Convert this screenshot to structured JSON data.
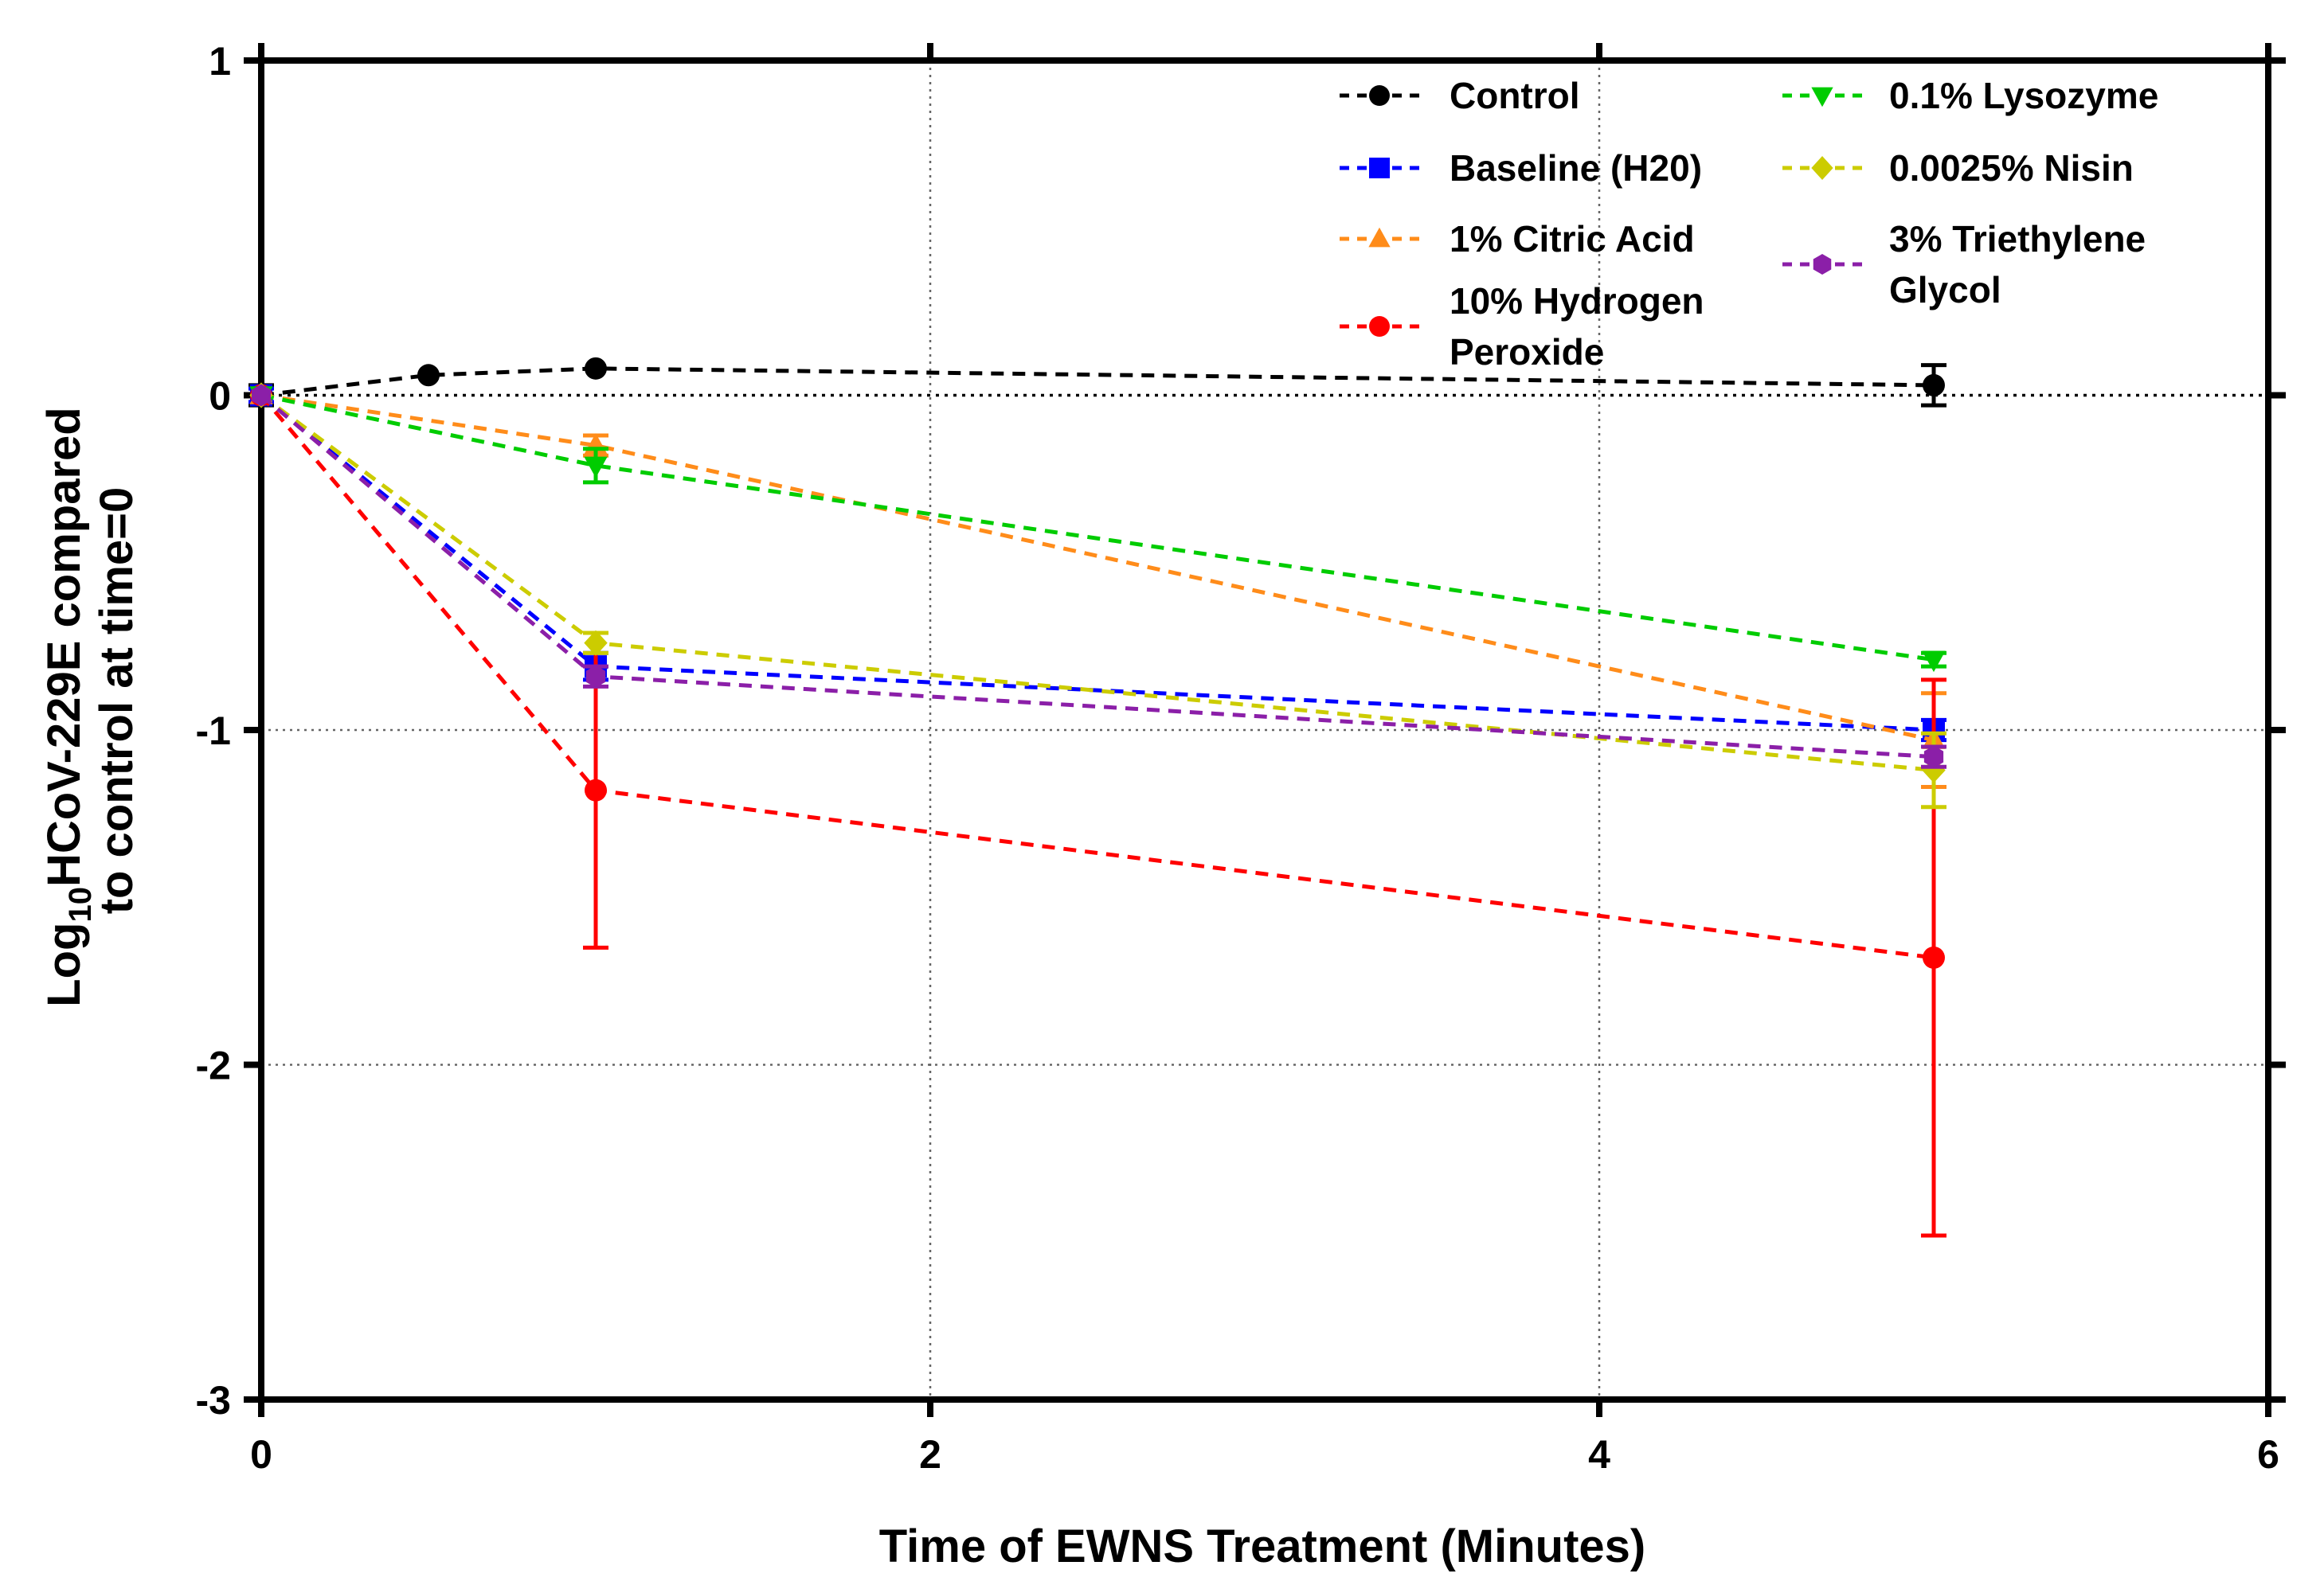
{
  "chart_data": {
    "type": "line",
    "title": "",
    "xlabel": "Time of EWNS Treatment (Minutes)",
    "ylabel": {
      "prefix": "Log",
      "subscript": "10",
      "suffix": "HCoV-229E compared",
      "line2": "to control at time=0"
    },
    "xlim": [
      0,
      6
    ],
    "ylim": [
      -3,
      1
    ],
    "xticks": [
      0,
      2,
      4,
      6
    ],
    "yticks": [
      1,
      0,
      -1,
      -2,
      -3
    ],
    "x_tick_labels": [
      "0",
      "2",
      "4",
      "6"
    ],
    "y_tick_labels": [
      "1",
      "0",
      "-1",
      "-2",
      "-3"
    ],
    "grid": "dotted, major ticks",
    "reference_line_y": 0,
    "legend_position": "top-right",
    "series": [
      {
        "name": "Control",
        "label_lines": [
          "Control"
        ],
        "color": "#000000",
        "marker": "circle",
        "x": [
          0,
          0.5,
          1,
          5
        ],
        "y": [
          0.0,
          0.06,
          0.08,
          0.03
        ],
        "err": [
          0.03,
          0.0,
          0.0,
          0.06
        ]
      },
      {
        "name": "Baseline (H20)",
        "label_lines": [
          "Baseline (H20)"
        ],
        "color": "#0000ff",
        "marker": "square",
        "x": [
          0,
          1,
          5
        ],
        "y": [
          0.0,
          -0.81,
          -1.0
        ],
        "err": [
          0.02,
          0.04,
          0.03
        ]
      },
      {
        "name": "1% Citric Acid",
        "label_lines": [
          "1% Citric Acid"
        ],
        "color": "#ff8c1a",
        "marker": "triangle-up",
        "x": [
          0,
          1,
          5
        ],
        "y": [
          0.0,
          -0.15,
          -1.03
        ],
        "err": [
          0.0,
          0.03,
          0.14
        ]
      },
      {
        "name": "10% Hydrogen Peroxide",
        "label_lines": [
          "10% Hydrogen",
          "Peroxide"
        ],
        "color": "#ff0000",
        "marker": "circle",
        "x": [
          0,
          1,
          5
        ],
        "y": [
          0.0,
          -1.18,
          -1.68
        ],
        "err": [
          0.0,
          0.47,
          0.83
        ]
      },
      {
        "name": "0.1% Lysozyme",
        "label_lines": [
          "0.1% Lysozyme"
        ],
        "color": "#00cc00",
        "marker": "triangle-down",
        "x": [
          0,
          1,
          5
        ],
        "y": [
          0.0,
          -0.21,
          -0.79
        ],
        "err": [
          0.0,
          0.05,
          0.02
        ]
      },
      {
        "name": "0.0025% Nisin",
        "label_lines": [
          "0.0025% Nisin"
        ],
        "color": "#cccc00",
        "marker": "diamond",
        "x": [
          0,
          1,
          5
        ],
        "y": [
          0.0,
          -0.74,
          -1.12
        ],
        "err": [
          0.0,
          0.03,
          0.11
        ]
      },
      {
        "name": "3% Triethylene Glycol",
        "label_lines": [
          "3% Triethylene",
          "Glycol"
        ],
        "color": "#8b1fa8",
        "marker": "hexagon",
        "x": [
          0,
          1,
          5
        ],
        "y": [
          0.0,
          -0.84,
          -1.08
        ],
        "err": [
          0.0,
          0.03,
          0.03
        ]
      }
    ]
  }
}
